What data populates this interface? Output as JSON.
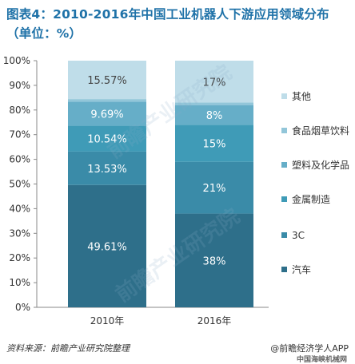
{
  "title": "图表4：2010-2016年中国工业机器人下游应用领域分布（单位：%）",
  "source": "资料来源：前瞻产业研究院整理",
  "brand": "@前瞻经济学人APP",
  "brand_sub": "中国海峡机械网",
  "watermarks": [
    "前瞻产业研究院",
    "前瞻产业研究院"
  ],
  "chart_data": {
    "type": "bar",
    "stacked": true,
    "categories": [
      "2010年",
      "2016年"
    ],
    "ylim": [
      0,
      100
    ],
    "yticks": [
      "0%",
      "10%",
      "20%",
      "30%",
      "40%",
      "50%",
      "60%",
      "70%",
      "80%",
      "90%",
      "100%"
    ],
    "grid": false,
    "legend_position": "right",
    "series": [
      {
        "name": "汽车",
        "values": [
          49.61,
          38
        ],
        "labels": [
          "49.61%",
          "38%"
        ],
        "color": "#2e6f8a"
      },
      {
        "name": "3C",
        "values": [
          13.53,
          21
        ],
        "labels": [
          "13.53%",
          "21%"
        ],
        "color": "#3a8ba8"
      },
      {
        "name": "金属制造",
        "values": [
          10.54,
          15
        ],
        "labels": [
          "10.54%",
          "15%"
        ],
        "color": "#3f9bb7"
      },
      {
        "name": "塑料及化学品",
        "values": [
          9.69,
          8
        ],
        "labels": [
          "9.69%",
          "8%"
        ],
        "color": "#66aec8"
      },
      {
        "name": "食品烟草饮料",
        "values": [
          1.06,
          1
        ],
        "labels": [
          "",
          ""
        ],
        "color": "#92c6d9"
      },
      {
        "name": "其他",
        "values": [
          15.57,
          17
        ],
        "labels": [
          "15.57%",
          "17%"
        ],
        "color": "#bfdde9"
      }
    ]
  }
}
